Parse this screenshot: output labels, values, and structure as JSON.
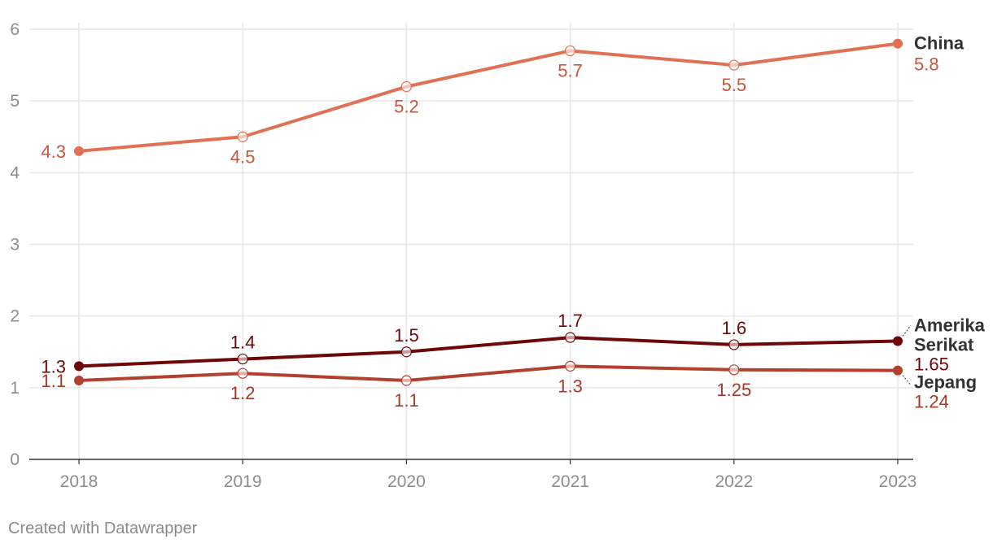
{
  "chart_data": {
    "type": "line",
    "title": "",
    "xlabel": "",
    "ylabel": "",
    "x": [
      "2018",
      "2019",
      "2020",
      "2021",
      "2022",
      "2023"
    ],
    "ylim": [
      0,
      6
    ],
    "yticks": [
      "0",
      "1",
      "2",
      "3",
      "4",
      "5",
      "6"
    ],
    "grid": true,
    "series": [
      {
        "name": "China",
        "color": "#e07155",
        "label_color": "#c9553b",
        "values": [
          4.3,
          4.5,
          5.2,
          5.7,
          5.5,
          5.8
        ],
        "labels": [
          "4.3",
          "4.5",
          "5.2",
          "5.7",
          "5.5",
          "5.8"
        ]
      },
      {
        "name_lines": [
          "Amerika",
          "Serikat"
        ],
        "color": "#6e0707",
        "label_color": "#6e0707",
        "values": [
          1.3,
          1.4,
          1.5,
          1.7,
          1.6,
          1.65
        ],
        "labels": [
          "1.3",
          "1.4",
          "1.5",
          "1.7",
          "1.6",
          "1.65"
        ]
      },
      {
        "name": "Jepang",
        "color": "#b0402f",
        "label_color": "#a8392a",
        "values": [
          1.1,
          1.2,
          1.1,
          1.3,
          1.25,
          1.24
        ],
        "labels": [
          "1.1",
          "1.2",
          "1.1",
          "1.3",
          "1.25",
          "1.24"
        ]
      }
    ]
  },
  "footer": "Created with Datawrapper"
}
